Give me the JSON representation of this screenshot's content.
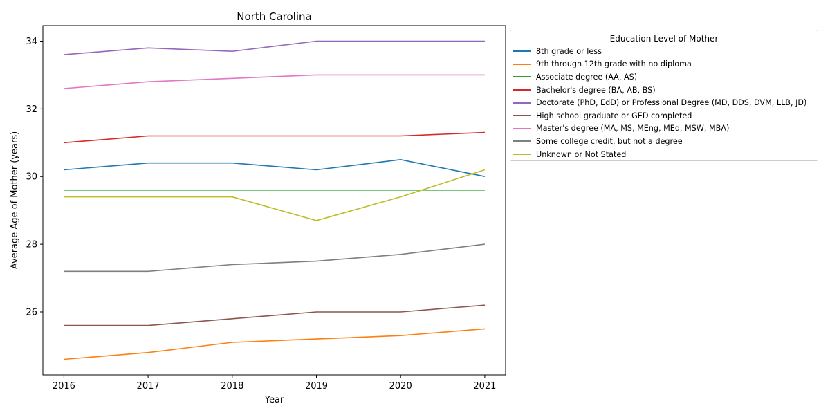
{
  "chart_data": {
    "type": "line",
    "title": "North Carolina",
    "xlabel": "Year",
    "ylabel": "Average Age of Mother (years)",
    "x": [
      2016,
      2017,
      2018,
      2019,
      2020,
      2021
    ],
    "xticks": [
      "2016",
      "2017",
      "2018",
      "2019",
      "2020",
      "2021"
    ],
    "yticks": [
      "26",
      "28",
      "30",
      "32",
      "34"
    ],
    "ylim": [
      24.14,
      34.46
    ],
    "grid": false,
    "legend": {
      "title": "Education Level of Mother",
      "placement": "outside right, top"
    },
    "series": [
      {
        "name": "8th grade or less",
        "color": "#1f77b4",
        "values": [
          30.2,
          30.4,
          30.4,
          30.2,
          30.5,
          30.0
        ]
      },
      {
        "name": "9th through 12th grade with no diploma",
        "color": "#ff7f0e",
        "values": [
          24.6,
          24.8,
          25.1,
          25.2,
          25.3,
          25.5
        ]
      },
      {
        "name": "Associate degree (AA, AS)",
        "color": "#2ca02c",
        "values": [
          29.6,
          29.6,
          29.6,
          29.6,
          29.6,
          29.6
        ]
      },
      {
        "name": "Bachelor's degree (BA, AB, BS)",
        "color": "#d62728",
        "values": [
          31.0,
          31.2,
          31.2,
          31.2,
          31.2,
          31.3
        ]
      },
      {
        "name": "Doctorate (PhD, EdD) or Professional Degree (MD, DDS, DVM, LLB, JD)",
        "color": "#9467bd",
        "values": [
          33.6,
          33.8,
          33.7,
          34.0,
          34.0,
          34.0
        ]
      },
      {
        "name": "High school graduate or GED completed",
        "color": "#8c564b",
        "values": [
          25.6,
          25.6,
          25.8,
          26.0,
          26.0,
          26.2
        ]
      },
      {
        "name": "Master's degree (MA, MS, MEng, MEd, MSW, MBA)",
        "color": "#e377c2",
        "values": [
          32.6,
          32.8,
          32.9,
          33.0,
          33.0,
          33.0
        ]
      },
      {
        "name": "Some college credit, but not a degree",
        "color": "#7f7f7f",
        "values": [
          27.2,
          27.2,
          27.4,
          27.5,
          27.7,
          28.0
        ]
      },
      {
        "name": "Unknown or Not Stated",
        "color": "#bcbd22",
        "values": [
          29.4,
          29.4,
          29.4,
          28.7,
          29.4,
          30.2
        ]
      }
    ]
  }
}
